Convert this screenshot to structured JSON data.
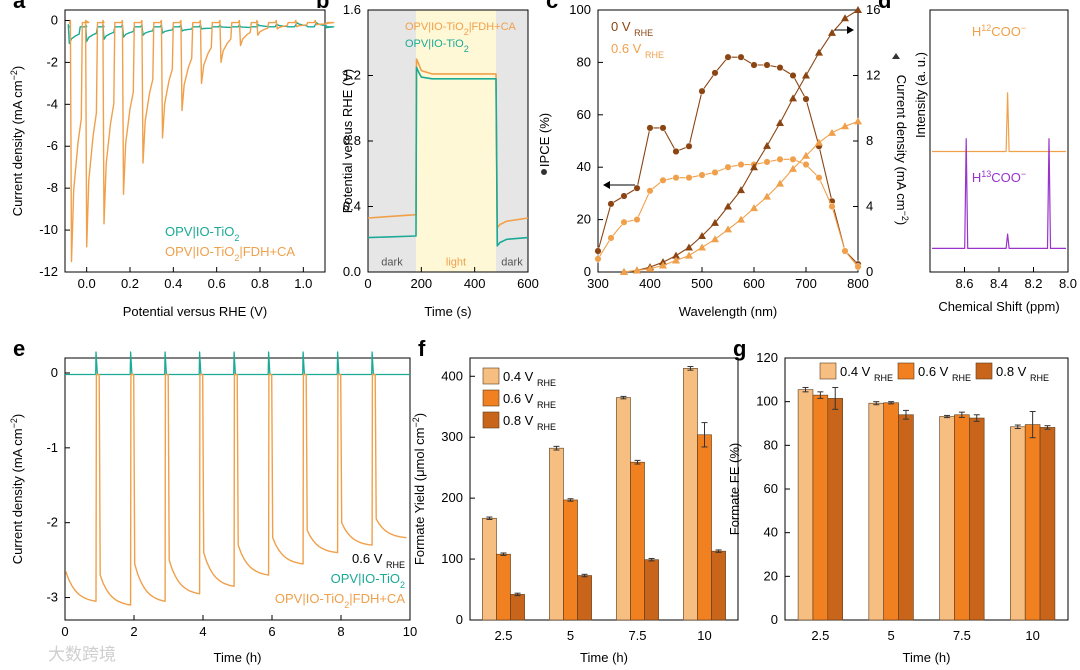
{
  "colors": {
    "orange": "#F0A04B",
    "teal": "#1AAA96",
    "brown": "#8B4513",
    "light_orange": "#F7BE82",
    "mid_orange": "#F08020",
    "dark_orange": "#C8651B",
    "purple": "#9933CC",
    "dark_bg": "#E6E6E6",
    "light_bg": "#FFF8D6"
  },
  "watermark": "大数跨境",
  "chart_data": [
    {
      "id": "a",
      "panel_label": "a",
      "type": "line",
      "title": "",
      "xlabel": "Potential versus RHE (V)",
      "ylabel": "Current density (mA cm⁻²)",
      "xlim": [
        -0.1,
        1.1
      ],
      "ylim": [
        -12,
        0.5
      ],
      "xticks": [
        "0.0",
        "0.2",
        "0.4",
        "0.6",
        "0.8",
        "1.0"
      ],
      "yticks": [
        "-12",
        "-10",
        "-8",
        "-6",
        "-4",
        "-2",
        "0"
      ],
      "legend": [
        "OPV|IO-TiO₂",
        "OPV|IO-TiO₂|FDH+CA"
      ],
      "series": [
        {
          "name": "OPV|IO-TiO₂",
          "color": "#1AAA96",
          "dark": -0.35,
          "spikes": [
            [
              -0.08,
              -1.1
            ],
            [
              0.0,
              -1.0
            ],
            [
              0.08,
              -0.9
            ],
            [
              0.17,
              -0.8
            ],
            [
              0.26,
              -0.7
            ],
            [
              0.35,
              -0.6
            ],
            [
              0.44,
              -0.5
            ],
            [
              0.53,
              -0.4
            ],
            [
              0.62,
              -0.3
            ],
            [
              0.71,
              -0.3
            ],
            [
              0.79,
              -0.2
            ],
            [
              0.88,
              -0.2
            ],
            [
              0.97,
              -0.1
            ],
            [
              1.06,
              -0.1
            ]
          ]
        },
        {
          "name": "OPV|IO-TiO₂|FDH+CA",
          "color": "#F0A04B",
          "dark": -0.15,
          "spikes": [
            [
              -0.07,
              -11.5
            ],
            [
              0.0,
              -10.8
            ],
            [
              0.08,
              -9.7
            ],
            [
              0.17,
              -8.3
            ],
            [
              0.26,
              -6.8
            ],
            [
              0.35,
              -5.6
            ],
            [
              0.44,
              -4.3
            ],
            [
              0.53,
              -3.0
            ],
            [
              0.62,
              -2.0
            ],
            [
              0.71,
              -1.2
            ],
            [
              0.79,
              -0.7
            ],
            [
              0.88,
              -0.4
            ],
            [
              0.97,
              -0.3
            ],
            [
              1.06,
              -0.2
            ]
          ]
        }
      ]
    },
    {
      "id": "b",
      "panel_label": "b",
      "type": "line",
      "xlabel": "Time (s)",
      "ylabel": "Potential versus RHE (V)",
      "xlim": [
        0,
        600
      ],
      "ylim": [
        0,
        1.6
      ],
      "xticks": [
        "0",
        "200",
        "400",
        "600"
      ],
      "yticks": [
        "0.0",
        "0.4",
        "0.8",
        "1.2",
        "1.6"
      ],
      "regions": [
        {
          "x": [
            0,
            180
          ],
          "label": "dark"
        },
        {
          "x": [
            180,
            480
          ],
          "label": "light"
        },
        {
          "x": [
            480,
            600
          ],
          "label": "dark"
        }
      ],
      "legend": [
        "OPV|IO-TiO₂|FDH+CA",
        "OPV|IO-TiO₂"
      ],
      "series": [
        {
          "name": "OPV|IO-TiO₂|FDH+CA",
          "color": "#F0A04B",
          "x": [
            0,
            180,
            182,
            190,
            200,
            240,
            480,
            485,
            495,
            520,
            600
          ],
          "y": [
            0.33,
            0.35,
            1.3,
            1.27,
            1.23,
            1.21,
            1.21,
            0.27,
            0.29,
            0.31,
            0.33
          ]
        },
        {
          "name": "OPV|IO-TiO₂",
          "color": "#1AAA96",
          "x": [
            0,
            180,
            182,
            190,
            200,
            240,
            480,
            485,
            495,
            520,
            600
          ],
          "y": [
            0.21,
            0.22,
            1.25,
            1.22,
            1.19,
            1.18,
            1.18,
            0.16,
            0.18,
            0.2,
            0.21
          ]
        }
      ]
    },
    {
      "id": "c",
      "panel_label": "c",
      "type": "line",
      "xlabel": "Wavelength (nm)",
      "ylabel": "IPCE (%)",
      "y2label": "Current density (mA cm⁻²)",
      "xlim": [
        300,
        800
      ],
      "ylim": [
        0,
        100
      ],
      "y2lim": [
        0,
        16
      ],
      "xticks": [
        "300",
        "400",
        "500",
        "600",
        "700",
        "800"
      ],
      "yticks": [
        "0",
        "20",
        "40",
        "60",
        "80",
        "100"
      ],
      "y2ticks": [
        "0",
        "4",
        "8",
        "12",
        "16"
      ],
      "legend": [
        "0 V",
        "0.6 V"
      ],
      "legend_sub": "RHE",
      "series": [
        {
          "name": "IPCE 0 V",
          "axis": "left",
          "marker": "circle",
          "color": "#8B4513",
          "x": [
            300,
            325,
            350,
            375,
            400,
            425,
            450,
            475,
            500,
            525,
            550,
            575,
            600,
            625,
            650,
            675,
            700,
            725,
            750,
            775,
            800
          ],
          "y": [
            8,
            26,
            29,
            32,
            55,
            55,
            46,
            48,
            69,
            76,
            82,
            82,
            79,
            79,
            78,
            75,
            66,
            48,
            27,
            8,
            3
          ]
        },
        {
          "name": "IPCE 0.6 V",
          "axis": "left",
          "marker": "circle",
          "color": "#F0A04B",
          "x": [
            300,
            325,
            350,
            375,
            400,
            425,
            450,
            475,
            500,
            525,
            550,
            575,
            600,
            625,
            650,
            675,
            700,
            725,
            750,
            775,
            800
          ],
          "y": [
            5,
            13,
            19,
            20,
            31,
            35,
            36,
            36,
            37,
            38,
            40,
            41,
            41,
            42,
            43,
            43,
            41,
            36,
            25,
            8,
            2
          ]
        },
        {
          "name": "Current 0 V",
          "axis": "right",
          "marker": "triangle",
          "color": "#8B4513",
          "x": [
            350,
            375,
            400,
            425,
            450,
            475,
            500,
            525,
            550,
            575,
            600,
            625,
            650,
            675,
            700,
            725,
            750,
            775,
            800
          ],
          "y": [
            0,
            0.1,
            0.3,
            0.6,
            1.0,
            1.5,
            2.2,
            3.0,
            4.0,
            5.0,
            6.4,
            7.7,
            9.1,
            10.6,
            12.0,
            13.4,
            14.6,
            15.5,
            16.0
          ]
        },
        {
          "name": "Current 0.6 V",
          "axis": "right",
          "marker": "triangle",
          "color": "#F0A04B",
          "x": [
            350,
            375,
            400,
            425,
            450,
            475,
            500,
            525,
            550,
            575,
            600,
            625,
            650,
            675,
            700,
            725,
            750,
            775,
            800
          ],
          "y": [
            0,
            0.1,
            0.2,
            0.4,
            0.7,
            1.0,
            1.5,
            2.0,
            2.6,
            3.2,
            3.9,
            4.6,
            5.4,
            6.3,
            7.1,
            7.9,
            8.5,
            8.9,
            9.2
          ]
        }
      ]
    },
    {
      "id": "d",
      "panel_label": "d",
      "type": "line",
      "xlabel": "Chemical Shift (ppm)",
      "ylabel": "Intensity (a. u.)",
      "xlim": [
        8.8,
        8.0
      ],
      "xticks": [
        "8.6",
        "8.4",
        "8.2",
        "8.0"
      ],
      "series": [
        {
          "name": "H¹²COO⁻",
          "label_main": "H",
          "label_sup": "12",
          "label_tail": "COO⁻",
          "color": "#F0A04B",
          "baseline": 0.46,
          "peaks": [
            {
              "ppm": 8.35,
              "height": 0.83
            }
          ]
        },
        {
          "name": "H¹³COO⁻",
          "label_main": "H",
          "label_sup": "13",
          "label_tail": "COO⁻",
          "color": "#9933CC",
          "baseline": 0.09,
          "peaks": [
            {
              "ppm": 8.59,
              "height": 0.92
            },
            {
              "ppm": 8.35,
              "height": 0.12
            },
            {
              "ppm": 8.11,
              "height": 0.92
            }
          ]
        }
      ]
    },
    {
      "id": "e",
      "panel_label": "e",
      "type": "line",
      "xlabel": "Time (h)",
      "ylabel": "Current density (mA cm⁻²)",
      "xlim": [
        0,
        10
      ],
      "ylim": [
        -3.3,
        0.2
      ],
      "xticks": [
        "0",
        "2",
        "4",
        "6",
        "8",
        "10"
      ],
      "yticks": [
        "-3",
        "-2",
        "-1",
        "0"
      ],
      "legend_title": "0.6 V",
      "legend_title_sub": "RHE",
      "legend": [
        "OPV|IO-TiO₂",
        "OPV|IO-TiO₂|FDH+CA"
      ],
      "period_h": 1.0,
      "dark_h": 0.1,
      "cycles_start": [
        -2.65,
        -2.7,
        -2.55,
        -2.5,
        -2.4,
        -2.3,
        -2.2,
        -2.1,
        -2.0,
        -1.95
      ],
      "cycles_end": [
        -3.05,
        -3.1,
        -3.05,
        -2.95,
        -2.85,
        -2.7,
        -2.55,
        -2.4,
        -2.3,
        -2.2
      ],
      "series": [
        {
          "name": "OPV|IO-TiO₂",
          "color": "#1AAA96",
          "level": -0.02,
          "spike": 0.28
        },
        {
          "name": "OPV|IO-TiO₂|FDH+CA",
          "color": "#F0A04B",
          "dark_level": -0.02
        }
      ]
    },
    {
      "id": "f",
      "panel_label": "f",
      "type": "bar",
      "xlabel": "Time (h)",
      "ylabel": "Formate Yield (μmol cm⁻²)",
      "ylim": [
        0,
        430
      ],
      "yticks": [
        "0",
        "100",
        "200",
        "300",
        "400"
      ],
      "categories": [
        "2.5",
        "5",
        "7.5",
        "10"
      ],
      "legend_sub": "RHE",
      "series": [
        {
          "name": "0.4 V",
          "color": "#F7BE82",
          "values": [
            167,
            282,
            365,
            413
          ],
          "errors": [
            2,
            3,
            2,
            3
          ]
        },
        {
          "name": "0.6 V",
          "color": "#F08020",
          "values": [
            108,
            197,
            259,
            304
          ],
          "errors": [
            2,
            2,
            3,
            20
          ]
        },
        {
          "name": "0.8 V",
          "color": "#C8651B",
          "values": [
            42,
            73,
            99,
            113
          ],
          "errors": [
            2,
            2,
            2,
            2
          ]
        }
      ]
    },
    {
      "id": "g",
      "panel_label": "g",
      "type": "bar",
      "xlabel": "Time (h)",
      "ylabel": "Formate FE (%)",
      "ylim": [
        0,
        120
      ],
      "yticks": [
        "0",
        "20",
        "40",
        "60",
        "80",
        "100",
        "120"
      ],
      "categories": [
        "2.5",
        "5",
        "7.5",
        "10"
      ],
      "legend_sub": "RHE",
      "series": [
        {
          "name": "0.4 V",
          "color": "#F7BE82",
          "values": [
            105.5,
            99.3,
            93.2,
            88.5
          ],
          "errors": [
            1,
            0.7,
            0.5,
            0.8
          ]
        },
        {
          "name": "0.6 V",
          "color": "#F08020",
          "values": [
            103,
            99.5,
            94,
            89.5
          ],
          "errors": [
            1.5,
            0.5,
            1.2,
            6
          ]
        },
        {
          "name": "0.8 V",
          "color": "#C8651B",
          "values": [
            101.5,
            94,
            92.5,
            88.2
          ],
          "errors": [
            5,
            2,
            1.5,
            0.8
          ]
        }
      ]
    }
  ]
}
